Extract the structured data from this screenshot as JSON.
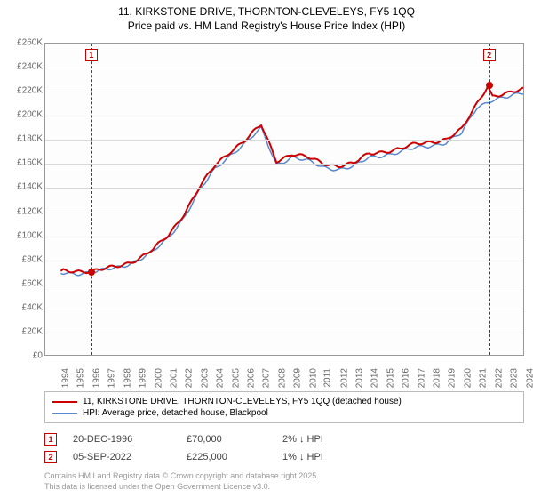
{
  "title": {
    "line1": "11, KIRKSTONE DRIVE, THORNTON-CLEVELEYS, FY5 1QQ",
    "line2": "Price paid vs. HM Land Registry's House Price Index (HPI)"
  },
  "chart": {
    "type": "line",
    "background_color": "#fdfdfd",
    "grid_color": "#d8d8d8",
    "border_color": "#999999",
    "y_axis": {
      "min": 0,
      "max": 260,
      "step": 20,
      "unit_prefix": "£",
      "unit_suffix": "K",
      "label_color": "#666666",
      "label_fontsize": 10
    },
    "x_axis": {
      "years": [
        1994,
        1995,
        1996,
        1997,
        1998,
        1999,
        2000,
        2001,
        2002,
        2003,
        2004,
        2005,
        2006,
        2007,
        2008,
        2009,
        2010,
        2011,
        2012,
        2013,
        2014,
        2015,
        2016,
        2017,
        2018,
        2019,
        2020,
        2021,
        2022,
        2023,
        2024,
        2025
      ],
      "label_color": "#666666",
      "label_fontsize": 10
    },
    "series": [
      {
        "id": "property",
        "label": "11, KIRKSTONE DRIVE, THORNTON-CLEVELEYS, FY5 1QQ (detached house)",
        "color": "#cc0000",
        "line_width": 2,
        "x": [
          1995,
          1996,
          1997,
          1998,
          1999,
          2000,
          2001,
          2002,
          2003,
          2004,
          2005,
          2006,
          2007,
          2008,
          2009,
          2010,
          2011,
          2012,
          2013,
          2014,
          2015,
          2016,
          2017,
          2018,
          2019,
          2020,
          2021,
          2022,
          2022.7,
          2023,
          2024,
          2025
        ],
        "y": [
          70,
          70,
          70,
          72,
          75,
          80,
          88,
          100,
          118,
          140,
          158,
          170,
          180,
          192,
          162,
          168,
          165,
          160,
          158,
          160,
          168,
          170,
          172,
          176,
          178,
          180,
          188,
          210,
          225,
          216,
          218,
          222
        ]
      },
      {
        "id": "hpi",
        "label": "HPI: Average price, detached house, Blackpool",
        "color": "#5588cc",
        "line_width": 1.5,
        "x": [
          1995,
          1996,
          1997,
          1998,
          1999,
          2000,
          2001,
          2002,
          2003,
          2004,
          2005,
          2006,
          2007,
          2008,
          2009,
          2010,
          2011,
          2012,
          2013,
          2014,
          2015,
          2016,
          2017,
          2018,
          2019,
          2020,
          2021,
          2022,
          2023,
          2024,
          2025
        ],
        "y": [
          68,
          68,
          69,
          71,
          74,
          79,
          86,
          98,
          115,
          137,
          155,
          167,
          177,
          189,
          159,
          165,
          162,
          157,
          155,
          157,
          165,
          167,
          169,
          173,
          175,
          177,
          185,
          207,
          213,
          215,
          219
        ]
      }
    ],
    "markers": [
      {
        "num": "1",
        "year": 1996.97,
        "value": 70,
        "box_color": "#cc0000"
      },
      {
        "num": "2",
        "year": 2022.68,
        "value": 225,
        "box_color": "#cc0000"
      }
    ]
  },
  "legend": {
    "border_color": "#bbbbbb",
    "fontsize": 10
  },
  "transactions": [
    {
      "num": "1",
      "date": "20-DEC-1996",
      "price": "£70,000",
      "pct": "2% ↓ HPI"
    },
    {
      "num": "2",
      "date": "05-SEP-2022",
      "price": "£225,000",
      "pct": "1% ↓ HPI"
    }
  ],
  "credit": {
    "line1": "Contains HM Land Registry data © Crown copyright and database right 2025.",
    "line2": "This data is licensed under the Open Government Licence v3.0."
  }
}
